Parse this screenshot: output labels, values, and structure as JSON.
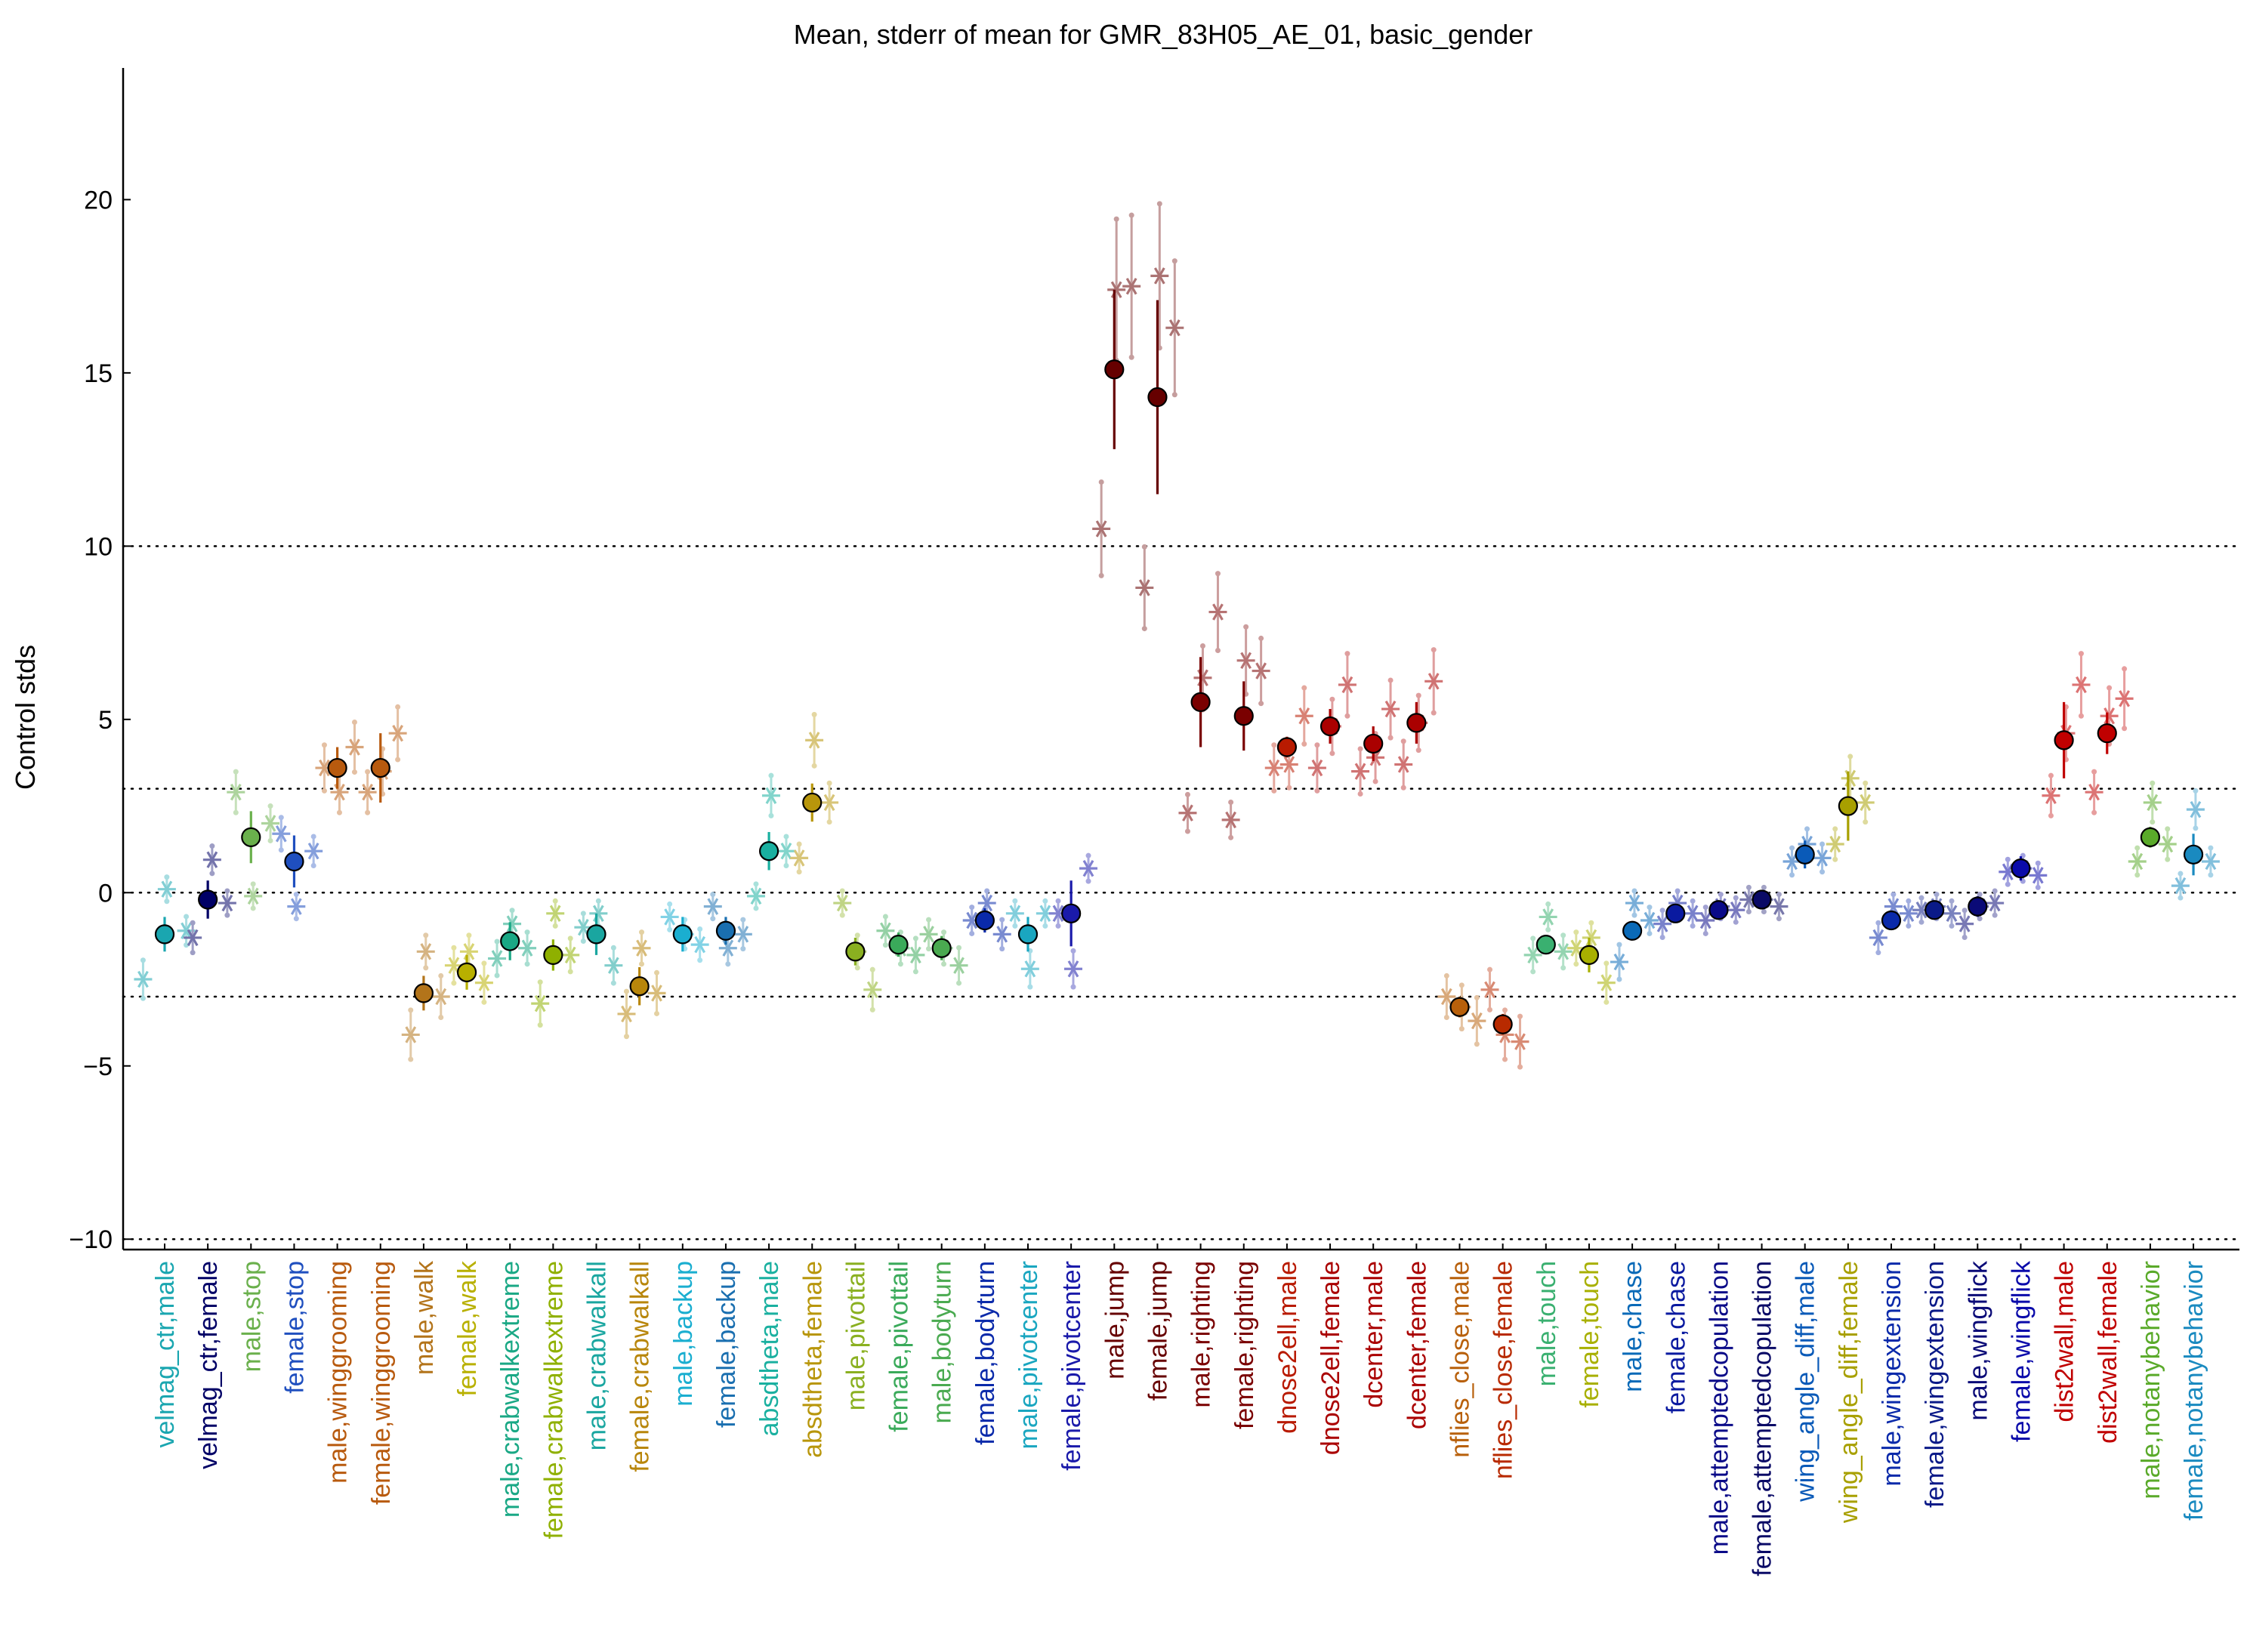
{
  "chart_data": {
    "type": "scatter",
    "title": "Mean, stderr of mean for GMR_83H05_AE_01, basic_gender",
    "ylabel": "Control stds",
    "xlabel": "",
    "ylim": [
      -10.3,
      23.8
    ],
    "yticks": [
      -10,
      -5,
      0,
      5,
      10,
      15,
      20
    ],
    "ytick_labels": [
      "−10",
      "−5",
      "0",
      "5",
      "10",
      "15",
      "20"
    ],
    "reference_lines": [
      -10,
      -3,
      0,
      3,
      10
    ],
    "grid": false,
    "categories": [
      {
        "label": "velmag_ctr,male",
        "color": "#1aa6b0",
        "mean": -1.2,
        "err": 0.5,
        "stars": [
          {
            "d": -0.5,
            "y": -2.5
          },
          {
            "d": 0.05,
            "y": 0.1
          },
          {
            "d": 0.5,
            "y": -1.1
          }
        ]
      },
      {
        "label": "velmag_ctr,female",
        "color": "#000066",
        "mean": -0.2,
        "err": 0.55,
        "stars": [
          {
            "d": -0.35,
            "y": -1.3
          },
          {
            "d": 0.1,
            "y": 0.95
          },
          {
            "d": 0.45,
            "y": -0.3
          }
        ]
      },
      {
        "label": "male,stop",
        "color": "#6ab04c",
        "mean": 1.6,
        "err": 0.75,
        "stars": [
          {
            "d": -0.35,
            "y": 2.9
          },
          {
            "d": 0.05,
            "y": -0.1
          },
          {
            "d": 0.45,
            "y": 2.0
          }
        ]
      },
      {
        "label": "female,stop",
        "color": "#1f4fbf",
        "mean": 0.9,
        "err": 0.75,
        "stars": [
          {
            "d": -0.3,
            "y": 1.7
          },
          {
            "d": 0.05,
            "y": -0.4
          },
          {
            "d": 0.45,
            "y": 1.2
          }
        ]
      },
      {
        "label": "male,winggrooming",
        "color": "#b85a0e",
        "mean": 3.6,
        "err": 0.6,
        "stars": [
          {
            "d": -0.3,
            "y": 3.6
          },
          {
            "d": 0.05,
            "y": 2.9
          },
          {
            "d": 0.4,
            "y": 4.2
          }
        ]
      },
      {
        "label": "female,winggrooming",
        "color": "#b85a0e",
        "mean": 3.6,
        "err": 1.0,
        "stars": [
          {
            "d": -0.3,
            "y": 2.9
          },
          {
            "d": 0.05,
            "y": 3.5
          },
          {
            "d": 0.4,
            "y": 4.6
          }
        ]
      },
      {
        "label": "male,walk",
        "color": "#b3741a",
        "mean": -2.9,
        "err": 0.5,
        "stars": [
          {
            "d": -0.3,
            "y": -4.1
          },
          {
            "d": 0.05,
            "y": -1.7
          },
          {
            "d": 0.4,
            "y": -3.0
          }
        ]
      },
      {
        "label": "female,walk",
        "color": "#b8b000",
        "mean": -2.3,
        "err": 0.5,
        "stars": [
          {
            "d": -0.3,
            "y": -2.1
          },
          {
            "d": 0.05,
            "y": -1.7
          },
          {
            "d": 0.4,
            "y": -2.6
          }
        ]
      },
      {
        "label": "male,crabwalkextreme",
        "color": "#1aa885",
        "mean": -1.4,
        "err": 0.55,
        "stars": [
          {
            "d": -0.3,
            "y": -1.9
          },
          {
            "d": 0.05,
            "y": -0.9
          },
          {
            "d": 0.4,
            "y": -1.6
          }
        ]
      },
      {
        "label": "female,crabwalkextreme",
        "color": "#8fb000",
        "mean": -1.8,
        "err": 0.45,
        "stars": [
          {
            "d": -0.3,
            "y": -3.2
          },
          {
            "d": 0.05,
            "y": -0.6
          },
          {
            "d": 0.4,
            "y": -1.8
          }
        ]
      },
      {
        "label": "male,crabwalkall",
        "color": "#1aa6a0",
        "mean": -1.2,
        "err": 0.6,
        "stars": [
          {
            "d": -0.3,
            "y": -1.0
          },
          {
            "d": 0.05,
            "y": -0.6
          },
          {
            "d": 0.4,
            "y": -2.1
          }
        ]
      },
      {
        "label": "female,crabwalkall",
        "color": "#b8860b",
        "mean": -2.7,
        "err": 0.55,
        "stars": [
          {
            "d": -0.3,
            "y": -3.5
          },
          {
            "d": 0.05,
            "y": -1.6
          },
          {
            "d": 0.4,
            "y": -2.9
          }
        ]
      },
      {
        "label": "male,backup",
        "color": "#1aaed0",
        "mean": -1.2,
        "err": 0.5,
        "stars": [
          {
            "d": -0.3,
            "y": -0.7
          },
          {
            "d": 0.05,
            "y": -1.2
          },
          {
            "d": 0.4,
            "y": -1.5
          }
        ]
      },
      {
        "label": "female,backup",
        "color": "#1a6fb0",
        "mean": -1.1,
        "err": 0.4,
        "stars": [
          {
            "d": -0.3,
            "y": -0.4
          },
          {
            "d": 0.05,
            "y": -1.6
          },
          {
            "d": 0.4,
            "y": -1.2
          }
        ]
      },
      {
        "label": "absdtheta,male",
        "color": "#1ab0a0",
        "mean": 1.2,
        "err": 0.55,
        "stars": [
          {
            "d": -0.3,
            "y": -0.1
          },
          {
            "d": 0.05,
            "y": 2.8
          },
          {
            "d": 0.4,
            "y": 1.2
          }
        ]
      },
      {
        "label": "absdtheta,female",
        "color": "#b8960b",
        "mean": 2.6,
        "err": 0.55,
        "stars": [
          {
            "d": -0.3,
            "y": 1.0
          },
          {
            "d": 0.05,
            "y": 4.4
          },
          {
            "d": 0.4,
            "y": 2.6
          }
        ]
      },
      {
        "label": "male,pivottail",
        "color": "#8ab020",
        "mean": -1.7,
        "err": 0.4,
        "stars": [
          {
            "d": -0.3,
            "y": -0.3
          },
          {
            "d": 0.05,
            "y": -1.7
          },
          {
            "d": 0.4,
            "y": -2.8
          }
        ]
      },
      {
        "label": "female,pivottail",
        "color": "#3aaa5a",
        "mean": -1.5,
        "err": 0.35,
        "stars": [
          {
            "d": -0.3,
            "y": -1.1
          },
          {
            "d": 0.05,
            "y": -1.6
          },
          {
            "d": 0.4,
            "y": -1.8
          }
        ]
      },
      {
        "label": "male,bodyturn",
        "color": "#4aaa50",
        "mean": -1.6,
        "err": 0.35,
        "stars": [
          {
            "d": -0.3,
            "y": -1.2
          },
          {
            "d": 0.05,
            "y": -1.6
          },
          {
            "d": 0.4,
            "y": -2.1
          }
        ]
      },
      {
        "label": "female,bodyturn",
        "color": "#0a2aaa",
        "mean": -0.8,
        "err": 0.35,
        "stars": [
          {
            "d": -0.3,
            "y": -0.8
          },
          {
            "d": 0.05,
            "y": -0.3
          },
          {
            "d": 0.4,
            "y": -1.2
          }
        ]
      },
      {
        "label": "male,pivotcenter",
        "color": "#1aa6c0",
        "mean": -1.2,
        "err": 0.5,
        "stars": [
          {
            "d": -0.3,
            "y": -0.6
          },
          {
            "d": 0.05,
            "y": -2.2
          },
          {
            "d": 0.4,
            "y": -0.6
          }
        ]
      },
      {
        "label": "female,pivotcenter",
        "color": "#1a1aaa",
        "mean": -0.6,
        "err": 0.95,
        "stars": [
          {
            "d": -0.3,
            "y": -0.6
          },
          {
            "d": 0.05,
            "y": -2.2
          },
          {
            "d": 0.4,
            "y": 0.7
          }
        ]
      },
      {
        "label": "male,jump",
        "color": "#660000",
        "mean": 15.1,
        "err": 2.3,
        "stars": [
          {
            "d": -0.3,
            "y": 10.5
          },
          {
            "d": 0.05,
            "y": 17.4
          },
          {
            "d": 0.4,
            "y": 17.5
          }
        ]
      },
      {
        "label": "female,jump",
        "color": "#660000",
        "mean": 14.3,
        "err": 2.8,
        "stars": [
          {
            "d": -0.3,
            "y": 8.8
          },
          {
            "d": 0.05,
            "y": 17.8
          },
          {
            "d": 0.4,
            "y": 16.3
          }
        ]
      },
      {
        "label": "male,righting",
        "color": "#7a0000",
        "mean": 5.5,
        "err": 1.3,
        "stars": [
          {
            "d": -0.3,
            "y": 2.3
          },
          {
            "d": 0.05,
            "y": 6.2
          },
          {
            "d": 0.4,
            "y": 8.1
          }
        ]
      },
      {
        "label": "female,righting",
        "color": "#7a0000",
        "mean": 5.1,
        "err": 1.0,
        "stars": [
          {
            "d": -0.3,
            "y": 2.1
          },
          {
            "d": 0.05,
            "y": 6.7
          },
          {
            "d": 0.4,
            "y": 6.4
          }
        ]
      },
      {
        "label": "dnose2ell,male",
        "color": "#b81a00",
        "mean": 4.2,
        "err": 0.3,
        "stars": [
          {
            "d": -0.3,
            "y": 3.6
          },
          {
            "d": 0.05,
            "y": 3.7
          },
          {
            "d": 0.4,
            "y": 5.1
          }
        ]
      },
      {
        "label": "dnose2ell,female",
        "color": "#aa0000",
        "mean": 4.8,
        "err": 0.5,
        "stars": [
          {
            "d": -0.3,
            "y": 3.6
          },
          {
            "d": 0.05,
            "y": 4.8
          },
          {
            "d": 0.4,
            "y": 6.0
          }
        ]
      },
      {
        "label": "dcenter,male",
        "color": "#aa0000",
        "mean": 4.3,
        "err": 0.5,
        "stars": [
          {
            "d": -0.3,
            "y": 3.5
          },
          {
            "d": 0.05,
            "y": 3.9
          },
          {
            "d": 0.4,
            "y": 5.3
          }
        ]
      },
      {
        "label": "dcenter,female",
        "color": "#aa0000",
        "mean": 4.9,
        "err": 0.6,
        "stars": [
          {
            "d": -0.3,
            "y": 3.7
          },
          {
            "d": 0.05,
            "y": 4.9
          },
          {
            "d": 0.4,
            "y": 6.1
          }
        ]
      },
      {
        "label": "nflies_close,male",
        "color": "#b8600b",
        "mean": -3.3,
        "err": 0.3,
        "stars": [
          {
            "d": -0.3,
            "y": -3.0
          },
          {
            "d": 0.05,
            "y": -3.3
          },
          {
            "d": 0.4,
            "y": -3.7
          }
        ]
      },
      {
        "label": "nflies_close,female",
        "color": "#b82a00",
        "mean": -3.8,
        "err": 0.3,
        "stars": [
          {
            "d": -0.3,
            "y": -2.8
          },
          {
            "d": 0.05,
            "y": -4.1
          },
          {
            "d": 0.4,
            "y": -4.3
          }
        ]
      },
      {
        "label": "male,touch",
        "color": "#3ab070",
        "mean": -1.5,
        "err": 0.25,
        "stars": [
          {
            "d": -0.3,
            "y": -1.8
          },
          {
            "d": 0.05,
            "y": -0.7
          },
          {
            "d": 0.4,
            "y": -1.7
          }
        ]
      },
      {
        "label": "female,touch",
        "color": "#a8b000",
        "mean": -1.8,
        "err": 0.5,
        "stars": [
          {
            "d": -0.3,
            "y": -1.6
          },
          {
            "d": 0.05,
            "y": -1.3
          },
          {
            "d": 0.4,
            "y": -2.6
          }
        ]
      },
      {
        "label": "male,chase",
        "color": "#0a6ab8",
        "mean": -1.1,
        "err": 0.25,
        "stars": [
          {
            "d": -0.3,
            "y": -2.0
          },
          {
            "d": 0.05,
            "y": -0.3
          },
          {
            "d": 0.4,
            "y": -0.8
          }
        ]
      },
      {
        "label": "female,chase",
        "color": "#0a1aa0",
        "mean": -0.6,
        "err": 0.2,
        "stars": [
          {
            "d": -0.3,
            "y": -0.9
          },
          {
            "d": 0.05,
            "y": -0.3
          },
          {
            "d": 0.4,
            "y": -0.6
          }
        ]
      },
      {
        "label": "male,attemptedcopulation",
        "color": "#0a0a88",
        "mean": -0.5,
        "err": 0.2,
        "stars": [
          {
            "d": -0.3,
            "y": -0.8
          },
          {
            "d": 0.05,
            "y": -0.4
          },
          {
            "d": 0.4,
            "y": -0.5
          }
        ]
      },
      {
        "label": "female,attemptedcopulation",
        "color": "#0a0a66",
        "mean": -0.2,
        "err": 0.1,
        "stars": [
          {
            "d": -0.3,
            "y": -0.2
          },
          {
            "d": 0.05,
            "y": -0.2
          },
          {
            "d": 0.4,
            "y": -0.4
          }
        ]
      },
      {
        "label": "wing_angle_diff,male",
        "color": "#0a5ab8",
        "mean": 1.1,
        "err": 0.4,
        "stars": [
          {
            "d": -0.3,
            "y": 0.9
          },
          {
            "d": 0.05,
            "y": 1.4
          },
          {
            "d": 0.4,
            "y": 1.0
          }
        ]
      },
      {
        "label": "wing_angle_diff,female",
        "color": "#a8a000",
        "mean": 2.5,
        "err": 1.0,
        "stars": [
          {
            "d": -0.3,
            "y": 1.4
          },
          {
            "d": 0.05,
            "y": 3.3
          },
          {
            "d": 0.4,
            "y": 2.6
          }
        ]
      },
      {
        "label": "male,wingextension",
        "color": "#0a2aaa",
        "mean": -0.8,
        "err": 0.25,
        "stars": [
          {
            "d": -0.3,
            "y": -1.3
          },
          {
            "d": 0.05,
            "y": -0.4
          },
          {
            "d": 0.4,
            "y": -0.6
          }
        ]
      },
      {
        "label": "female,wingextension",
        "color": "#0a1a88",
        "mean": -0.5,
        "err": 0.15,
        "stars": [
          {
            "d": -0.3,
            "y": -0.5
          },
          {
            "d": 0.05,
            "y": -0.4
          },
          {
            "d": 0.4,
            "y": -0.6
          }
        ]
      },
      {
        "label": "male,wingflick",
        "color": "#0a0a77",
        "mean": -0.4,
        "err": 0.3,
        "stars": [
          {
            "d": -0.3,
            "y": -0.9
          },
          {
            "d": 0.05,
            "y": -0.4
          },
          {
            "d": 0.4,
            "y": -0.3
          }
        ]
      },
      {
        "label": "female,wingflick",
        "color": "#0a0aaa",
        "mean": 0.7,
        "err": 0.35,
        "stars": [
          {
            "d": -0.3,
            "y": 0.6
          },
          {
            "d": 0.05,
            "y": 0.7
          },
          {
            "d": 0.4,
            "y": 0.5
          }
        ]
      },
      {
        "label": "dist2wall,male",
        "color": "#c00000",
        "mean": 4.4,
        "err": 1.1,
        "stars": [
          {
            "d": -0.3,
            "y": 2.8
          },
          {
            "d": 0.05,
            "y": 4.6
          },
          {
            "d": 0.4,
            "y": 6.0
          }
        ]
      },
      {
        "label": "dist2wall,female",
        "color": "#c00000",
        "mean": 4.6,
        "err": 0.6,
        "stars": [
          {
            "d": -0.3,
            "y": 2.9
          },
          {
            "d": 0.05,
            "y": 5.1
          },
          {
            "d": 0.4,
            "y": 5.6
          }
        ]
      },
      {
        "label": "male,notanybehavior",
        "color": "#5aaa2a",
        "mean": 1.6,
        "err": 0.3,
        "stars": [
          {
            "d": -0.3,
            "y": 0.9
          },
          {
            "d": 0.05,
            "y": 2.6
          },
          {
            "d": 0.4,
            "y": 1.4
          }
        ]
      },
      {
        "label": "female,notanybehavior",
        "color": "#1a8ac0",
        "mean": 1.1,
        "err": 0.6,
        "stars": [
          {
            "d": -0.3,
            "y": 0.2
          },
          {
            "d": 0.05,
            "y": 2.4
          },
          {
            "d": 0.4,
            "y": 0.9
          }
        ]
      }
    ]
  }
}
